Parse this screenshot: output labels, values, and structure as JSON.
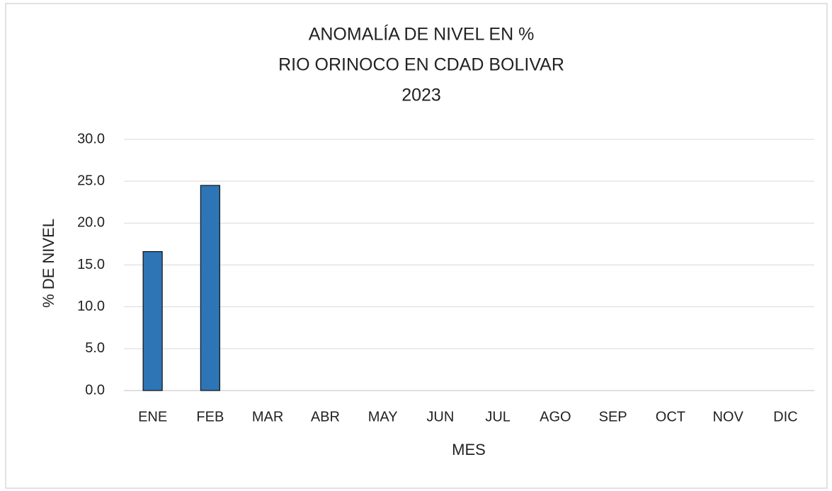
{
  "chart_data": {
    "type": "bar",
    "title": [
      "ANOMALÍA DE NIVEL EN %",
      "RIO ORINOCO EN CDAD BOLIVAR",
      "2023"
    ],
    "x_label": "MES",
    "y_label": "% DE NIVEL",
    "categories": [
      "ENE",
      "FEB",
      "MAR",
      "ABR",
      "MAY",
      "JUN",
      "JUL",
      "AGO",
      "SEP",
      "OCT",
      "NOV",
      "DIC"
    ],
    "values": [
      16.6,
      24.5,
      null,
      null,
      null,
      null,
      null,
      null,
      null,
      null,
      null,
      null
    ],
    "color": "#2e75b6",
    "ylim": [
      0,
      30
    ],
    "yticks": [
      {
        "value": 0,
        "label": "0.0"
      },
      {
        "value": 5,
        "label": "5.0"
      },
      {
        "value": 10,
        "label": "10.0"
      },
      {
        "value": 15,
        "label": "15.0"
      },
      {
        "value": 20,
        "label": "20.0"
      },
      {
        "value": 25,
        "label": "25.0"
      },
      {
        "value": 30,
        "label": "30.0"
      }
    ],
    "grid": true
  }
}
